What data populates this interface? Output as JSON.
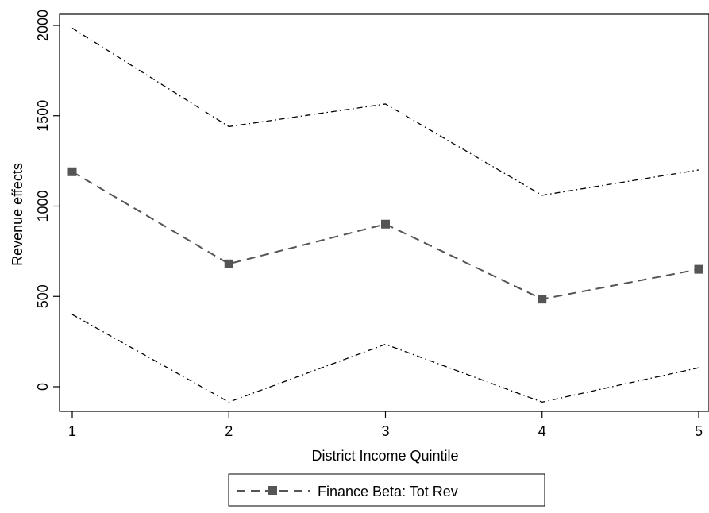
{
  "chart_data": {
    "type": "line",
    "title": "",
    "xlabel": "District Income Quintile",
    "ylabel": "Revenue effects",
    "x": [
      1,
      2,
      3,
      4,
      5
    ],
    "xticks": [
      "1",
      "2",
      "3",
      "4",
      "5"
    ],
    "yticks": [
      "0",
      "500",
      "1000",
      "1500",
      "2000"
    ],
    "xlim": [
      1,
      5
    ],
    "ylim": [
      -150,
      2050
    ],
    "grid": false,
    "legend_position": "bottom-center",
    "series": [
      {
        "name": "Finance Beta: Tot Rev",
        "values": [
          1190,
          680,
          900,
          485,
          650
        ],
        "style": "dashed",
        "marker": "square",
        "color": "#555555"
      },
      {
        "values": [
          1985,
          1440,
          1565,
          1060,
          1200
        ],
        "style": "dash-dot",
        "color": "#000000"
      },
      {
        "values": [
          400,
          -85,
          235,
          -85,
          105
        ],
        "style": "dash-dot",
        "color": "#000000"
      }
    ]
  }
}
